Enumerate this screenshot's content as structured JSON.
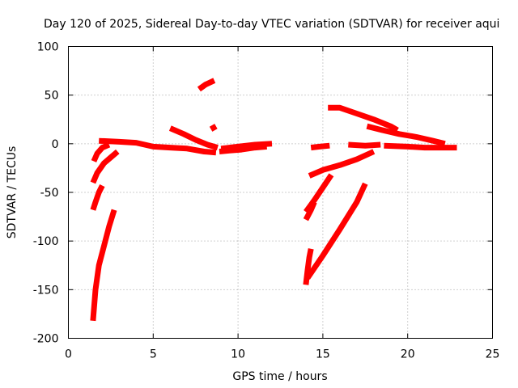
{
  "chart_data": {
    "type": "scatter",
    "title": "Day 120 of 2025, Sidereal Day-to-day VTEC variation (SDTVAR) for receiver aqui",
    "xlabel": "GPS time / hours",
    "ylabel": "SDTVAR / TECUs",
    "xlim": [
      0,
      25
    ],
    "ylim": [
      -200,
      100
    ],
    "xticks": [
      "0",
      "5",
      "10",
      "15",
      "20",
      "25"
    ],
    "yticks": [
      "100",
      "50",
      "0",
      "-50",
      "-100",
      "-150",
      "-200"
    ],
    "grid": true,
    "marker": "plus",
    "color": "#ff0000",
    "series": [
      {
        "values": [
          [
            1.45,
            -182
          ],
          [
            1.6,
            -150
          ],
          [
            1.8,
            -125
          ],
          [
            2.1,
            -105
          ],
          [
            2.4,
            -85
          ],
          [
            2.7,
            -68
          ]
        ]
      },
      {
        "values": [
          [
            1.45,
            -68
          ],
          [
            1.6,
            -60
          ],
          [
            1.8,
            -50
          ],
          [
            2.0,
            -43
          ]
        ]
      },
      {
        "values": [
          [
            1.45,
            -40
          ],
          [
            1.7,
            -30
          ],
          [
            2.1,
            -20
          ],
          [
            2.5,
            -14
          ],
          [
            2.9,
            -8
          ]
        ]
      },
      {
        "values": [
          [
            1.5,
            -18
          ],
          [
            1.7,
            -10
          ],
          [
            2.0,
            -4
          ],
          [
            2.4,
            -1
          ]
        ]
      },
      {
        "values": [
          [
            1.8,
            3
          ],
          [
            3.0,
            2
          ],
          [
            4.0,
            1
          ],
          [
            5.0,
            -3
          ],
          [
            6.0,
            -4
          ],
          [
            7.0,
            -5
          ],
          [
            8.0,
            -8
          ],
          [
            8.7,
            -9
          ]
        ]
      },
      {
        "values": [
          [
            6.0,
            16
          ],
          [
            6.8,
            10
          ],
          [
            7.5,
            4
          ],
          [
            8.2,
            -1
          ],
          [
            8.8,
            -4
          ]
        ]
      },
      {
        "values": [
          [
            7.7,
            56
          ],
          [
            8.1,
            61
          ],
          [
            8.6,
            65
          ]
        ]
      },
      {
        "values": [
          [
            8.4,
            15
          ],
          [
            8.7,
            18
          ]
        ]
      },
      {
        "values": [
          [
            8.9,
            -8
          ],
          [
            9.5,
            -7
          ],
          [
            10.2,
            -6
          ],
          [
            11.0,
            -4
          ],
          [
            11.7,
            -3
          ]
        ]
      },
      {
        "values": [
          [
            9.0,
            -5
          ],
          [
            10.0,
            -3
          ],
          [
            11.0,
            -1
          ],
          [
            12.0,
            0
          ]
        ]
      },
      {
        "values": [
          [
            14.0,
            -145
          ],
          [
            14.1,
            -130
          ],
          [
            14.2,
            -117
          ],
          [
            14.3,
            -108
          ]
        ]
      },
      {
        "values": [
          [
            14.1,
            -138
          ],
          [
            15.0,
            -115
          ],
          [
            16.0,
            -88
          ],
          [
            17.0,
            -60
          ],
          [
            17.5,
            -41
          ]
        ]
      },
      {
        "values": [
          [
            14.0,
            -78
          ],
          [
            14.3,
            -68
          ],
          [
            14.5,
            -60
          ]
        ]
      },
      {
        "values": [
          [
            14.0,
            -70
          ],
          [
            14.5,
            -58
          ],
          [
            15.0,
            -45
          ],
          [
            15.5,
            -32
          ]
        ]
      },
      {
        "values": [
          [
            14.2,
            -33
          ],
          [
            15.0,
            -27
          ],
          [
            16.0,
            -22
          ],
          [
            17.0,
            -16
          ],
          [
            18.0,
            -8
          ]
        ]
      },
      {
        "values": [
          [
            14.3,
            -4
          ],
          [
            14.8,
            -3
          ],
          [
            15.4,
            -2
          ]
        ]
      },
      {
        "values": [
          [
            15.3,
            37
          ],
          [
            16.0,
            37
          ],
          [
            17.0,
            31
          ],
          [
            18.0,
            25
          ],
          [
            19.0,
            18
          ],
          [
            19.4,
            14
          ]
        ]
      },
      {
        "values": [
          [
            17.6,
            18
          ],
          [
            18.5,
            14
          ],
          [
            19.5,
            10
          ],
          [
            20.5,
            7
          ],
          [
            21.5,
            3
          ],
          [
            22.2,
            0
          ]
        ]
      },
      {
        "values": [
          [
            16.5,
            -1
          ],
          [
            17.5,
            -2
          ],
          [
            18.4,
            -1
          ]
        ]
      },
      {
        "values": [
          [
            18.6,
            -2
          ],
          [
            20.0,
            -3
          ],
          [
            21.0,
            -4
          ],
          [
            22.0,
            -4
          ],
          [
            22.9,
            -4
          ]
        ]
      }
    ]
  }
}
